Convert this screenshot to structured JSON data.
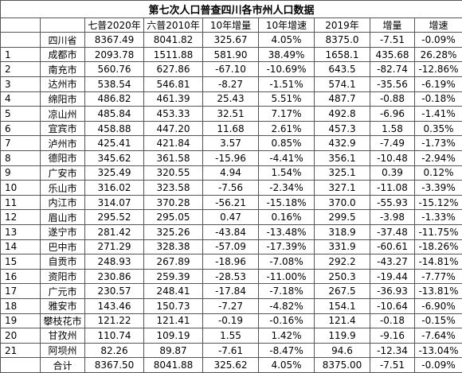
{
  "table": {
    "title": "第七次人口普查四川各市州人口数据",
    "header": [
      null,
      null,
      "七普2020年",
      "六普2010年",
      "10年增量",
      "10年增速",
      "2019年",
      "增量",
      "增速"
    ],
    "rows": [
      [
        null,
        "四川省",
        "8367.49",
        "8041.82",
        "325.67",
        "4.05%",
        "8375.0",
        "-7.51",
        "-0.09%"
      ],
      [
        "1",
        "成都市",
        "2093.78",
        "1511.88",
        "581.90",
        "38.49%",
        "1658.1",
        "435.68",
        "26.28%"
      ],
      [
        "2",
        "南充市",
        "560.76",
        "627.86",
        "-67.10",
        "-10.69%",
        "643.5",
        "-82.74",
        "-12.86%"
      ],
      [
        "3",
        "达州市",
        "538.54",
        "546.81",
        "-8.27",
        "-1.51%",
        "574.1",
        "-35.56",
        "-6.19%"
      ],
      [
        "4",
        "绵阳市",
        "486.82",
        "461.39",
        "25.43",
        "5.51%",
        "487.7",
        "-0.88",
        "-0.18%"
      ],
      [
        "5",
        "凉山州",
        "485.84",
        "453.33",
        "32.51",
        "7.17%",
        "492.8",
        "-6.96",
        "-1.41%"
      ],
      [
        "6",
        "宜宾市",
        "458.88",
        "447.20",
        "11.68",
        "2.61%",
        "457.3",
        "1.58",
        "0.35%"
      ],
      [
        "7",
        "泸州市",
        "425.41",
        "421.84",
        "3.57",
        "0.85%",
        "432.9",
        "-7.49",
        "-1.73%"
      ],
      [
        "8",
        "德阳市",
        "345.62",
        "361.58",
        "-15.96",
        "-4.41%",
        "356.1",
        "-10.48",
        "-2.94%"
      ],
      [
        "9",
        "广安市",
        "325.49",
        "320.55",
        "4.94",
        "1.54%",
        "325.1",
        "0.39",
        "0.12%"
      ],
      [
        "10",
        "乐山市",
        "316.02",
        "323.58",
        "-7.56",
        "-2.34%",
        "327.1",
        "-11.08",
        "-3.39%"
      ],
      [
        "11",
        "内江市",
        "314.07",
        "370.28",
        "-56.21",
        "-15.18%",
        "370.0",
        "-55.93",
        "-15.12%"
      ],
      [
        "12",
        "眉山市",
        "295.52",
        "295.05",
        "0.47",
        "0.16%",
        "299.5",
        "-3.98",
        "-1.33%"
      ],
      [
        "13",
        "遂宁市",
        "281.42",
        "325.26",
        "-43.84",
        "-13.48%",
        "318.9",
        "-37.48",
        "-11.75%"
      ],
      [
        "14",
        "巴中市",
        "271.29",
        "328.38",
        "-57.09",
        "-17.39%",
        "331.9",
        "-60.61",
        "-18.26%"
      ],
      [
        "15",
        "自贡市",
        "248.93",
        "267.89",
        "-18.96",
        "-7.08%",
        "292.2",
        "-43.27",
        "-14.81%"
      ],
      [
        "16",
        "资阳市",
        "230.86",
        "259.39",
        "-28.53",
        "-11.00%",
        "250.3",
        "-19.44",
        "-7.77%"
      ],
      [
        "17",
        "广元市",
        "230.57",
        "248.41",
        "-17.84",
        "-7.18%",
        "267.5",
        "-36.93",
        "-13.81%"
      ],
      [
        "18",
        "雅安市",
        "143.46",
        "150.73",
        "-7.27",
        "-4.82%",
        "154.1",
        "-10.64",
        "-6.90%"
      ],
      [
        "19",
        "攀枝花市",
        "121.22",
        "121.41",
        "-0.19",
        "-0.16%",
        "121.4",
        "-0.18",
        "-0.15%"
      ],
      [
        "20",
        "甘孜州",
        "110.74",
        "109.19",
        "1.55",
        "1.42%",
        "119.9",
        "-9.16",
        "-7.64%"
      ],
      [
        "21",
        "阿坝州",
        "82.26",
        "89.87",
        "-7.61",
        "-8.47%",
        "94.6",
        "-12.34",
        "-13.04%"
      ],
      [
        null,
        "合计",
        "8367.50",
        "8041.88",
        "325.62",
        "4.05%",
        "8375.00",
        "-7.51",
        "-0.09%"
      ]
    ]
  }
}
